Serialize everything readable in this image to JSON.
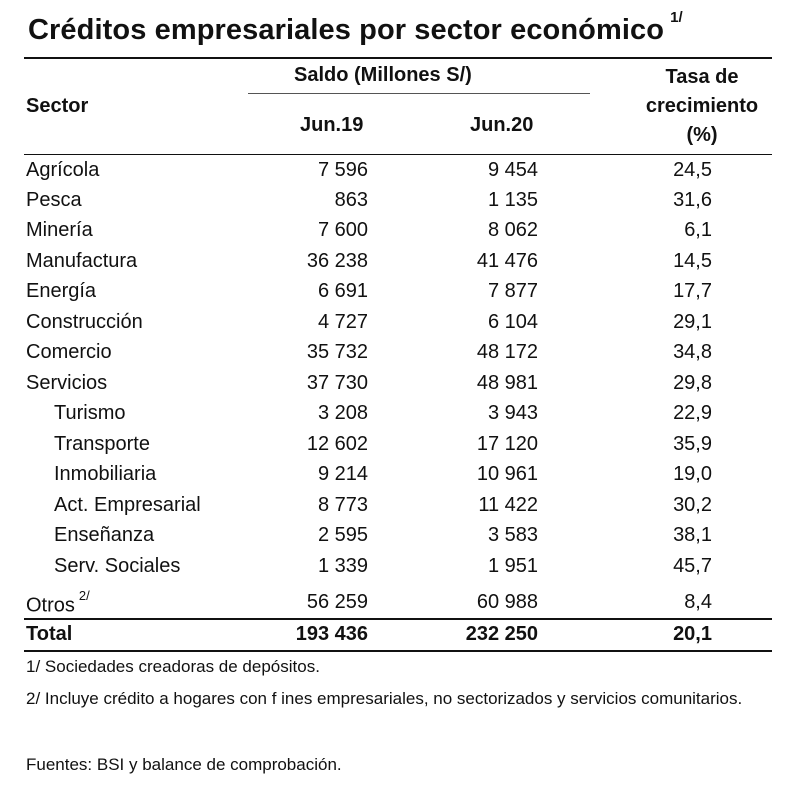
{
  "title": "Créditos empresariales por sector económico",
  "title_note": "1/",
  "header": {
    "sector": "Sector",
    "saldo": "Saldo (Millones S/)",
    "jun19": "Jun.19",
    "jun20": "Jun.20",
    "tasa_line1": "Tasa de",
    "tasa_line2": "crecimiento",
    "tasa_line3": "(%)"
  },
  "rows": [
    {
      "sector": "Agrícola",
      "jun19": "7 596",
      "jun20": "9 454",
      "tasa": "24,5"
    },
    {
      "sector": "Pesca",
      "jun19": "863",
      "jun20": "1 135",
      "tasa": "31,6"
    },
    {
      "sector": "Minería",
      "jun19": "7 600",
      "jun20": "8 062",
      "tasa": "6,1"
    },
    {
      "sector": "Manufactura",
      "jun19": "36 238",
      "jun20": "41 476",
      "tasa": "14,5"
    },
    {
      "sector": "Energía",
      "jun19": "6 691",
      "jun20": "7 877",
      "tasa": "17,7"
    },
    {
      "sector": "Construcción",
      "jun19": "4 727",
      "jun20": "6 104",
      "tasa": "29,1"
    },
    {
      "sector": "Comercio",
      "jun19": "35 732",
      "jun20": "48 172",
      "tasa": "34,8"
    },
    {
      "sector": "Servicios",
      "jun19": "37 730",
      "jun20": "48 981",
      "tasa": "29,8"
    },
    {
      "sector": "Turismo",
      "jun19": "3 208",
      "jun20": "3 943",
      "tasa": "22,9"
    },
    {
      "sector": "Transporte",
      "jun19": "12 602",
      "jun20": "17 120",
      "tasa": "35,9"
    },
    {
      "sector": "Inmobiliaria",
      "jun19": "9 214",
      "jun20": "10 961",
      "tasa": "19,0"
    },
    {
      "sector": "Act. Empresarial",
      "jun19": "8 773",
      "jun20": "11 422",
      "tasa": "30,2"
    },
    {
      "sector": "Enseñanza",
      "jun19": "2 595",
      "jun20": "3 583",
      "tasa": "38,1"
    },
    {
      "sector": "Serv. Sociales",
      "jun19": "1 339",
      "jun20": "1 951",
      "tasa": "45,7"
    },
    {
      "sector": "Otros",
      "sector_note": "2/",
      "jun19": "56 259",
      "jun20": "60 988",
      "tasa": "8,4"
    }
  ],
  "total": {
    "sector": "Total",
    "jun19": "193 436",
    "jun20": "232 250",
    "tasa": "20,1"
  },
  "notes": {
    "note1": "1/ Sociedades creadoras de depósitos.",
    "note2": "2/ Incluye crédito a hogares con f ines empresariales, no sectorizados y servicios comunitarios.",
    "sources": "Fuentes: BSI y balance de comprobación."
  }
}
